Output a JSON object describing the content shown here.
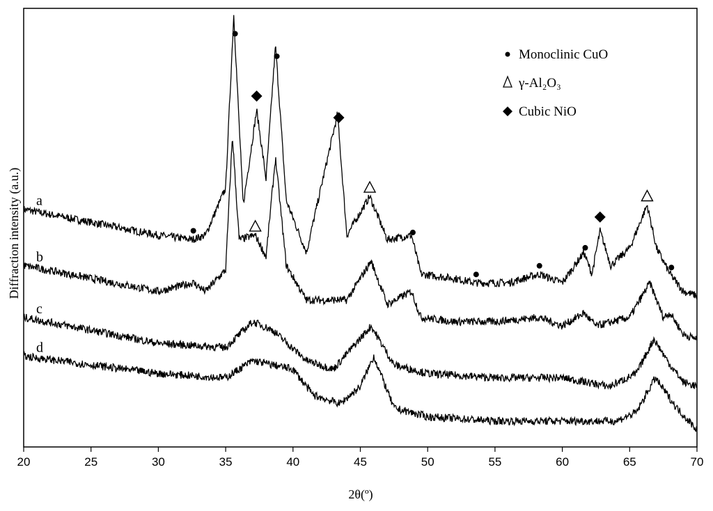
{
  "chart_data": {
    "type": "line",
    "xlabel": "2θ(º)",
    "ylabel": "Diffraction intensity (a.u.)",
    "xlim": [
      20,
      70
    ],
    "x_ticks": [
      "20",
      "25",
      "30",
      "35",
      "40",
      "45",
      "50",
      "55",
      "60",
      "65",
      "70"
    ],
    "y_ticks_shown": false,
    "grid": false,
    "legend_position": "top-right",
    "legend": [
      {
        "marker": "●",
        "label": "Monoclinic CuO"
      },
      {
        "marker": "Δ",
        "label": "γ-Al₂O₃"
      },
      {
        "marker": "◆",
        "label": "Cubic NiO"
      }
    ],
    "series": [
      {
        "name": "a",
        "x": [
          20,
          25,
          30,
          32.5,
          33.5,
          35.0,
          35.6,
          36.3,
          37.3,
          38.0,
          38.7,
          39.5,
          41.0,
          43.3,
          44.0,
          45.7,
          47.0,
          48.8,
          49.5,
          52.0,
          53.5,
          56.0,
          58.3,
          60.0,
          61.6,
          62.2,
          62.8,
          63.6,
          65.0,
          66.3,
          67.0,
          68.0,
          69.0,
          70
        ],
        "y": [
          0.55,
          0.52,
          0.49,
          0.48,
          0.49,
          0.6,
          1.0,
          0.56,
          0.78,
          0.62,
          0.93,
          0.57,
          0.45,
          0.77,
          0.49,
          0.58,
          0.48,
          0.49,
          0.4,
          0.39,
          0.38,
          0.38,
          0.4,
          0.38,
          0.45,
          0.4,
          0.5,
          0.42,
          0.46,
          0.56,
          0.46,
          0.4,
          0.36,
          0.35
        ]
      },
      {
        "name": "b",
        "x": [
          20,
          25,
          30,
          32.6,
          33.5,
          35.0,
          35.5,
          36.0,
          37.2,
          38.0,
          38.7,
          39.5,
          41.0,
          44.0,
          45.8,
          47.0,
          48.8,
          49.5,
          52.0,
          55.0,
          58.3,
          60.0,
          61.6,
          62.5,
          65.0,
          66.5,
          67.5,
          68.0,
          69.0,
          70
        ],
        "y": [
          0.42,
          0.39,
          0.36,
          0.38,
          0.36,
          0.41,
          0.72,
          0.48,
          0.49,
          0.44,
          0.67,
          0.42,
          0.34,
          0.34,
          0.43,
          0.33,
          0.36,
          0.3,
          0.29,
          0.29,
          0.3,
          0.28,
          0.31,
          0.28,
          0.3,
          0.38,
          0.3,
          0.31,
          0.26,
          0.25
        ]
      },
      {
        "name": "c",
        "x": [
          20,
          25,
          30,
          35,
          37.0,
          38.5,
          41.0,
          43.0,
          45.8,
          47.5,
          50,
          55,
          60,
          63.5,
          65.5,
          66.8,
          68.0,
          69.0,
          70
        ],
        "y": [
          0.3,
          0.27,
          0.24,
          0.23,
          0.29,
          0.27,
          0.2,
          0.18,
          0.28,
          0.19,
          0.17,
          0.16,
          0.16,
          0.14,
          0.17,
          0.25,
          0.19,
          0.15,
          0.14
        ]
      },
      {
        "name": "d",
        "x": [
          20,
          25,
          30,
          35,
          37.0,
          38.5,
          40.0,
          41.5,
          43.5,
          45.0,
          46.0,
          47.5,
          50,
          55,
          60,
          64.0,
          65.5,
          66.9,
          68.5,
          70
        ],
        "y": [
          0.21,
          0.19,
          0.17,
          0.16,
          0.2,
          0.19,
          0.18,
          0.12,
          0.1,
          0.14,
          0.21,
          0.09,
          0.07,
          0.06,
          0.06,
          0.06,
          0.08,
          0.16,
          0.09,
          0.04
        ]
      }
    ],
    "markers": [
      {
        "series": "a",
        "type": "circle",
        "x": [
          32.6,
          35.7,
          38.8,
          48.9,
          53.6,
          58.3,
          61.7,
          68.1
        ]
      },
      {
        "series": "a",
        "type": "diamond",
        "x": [
          37.3,
          43.4,
          62.8
        ]
      },
      {
        "series": "a",
        "type": "triangle",
        "x": [
          45.7,
          66.3
        ]
      },
      {
        "series": "b",
        "type": "triangle",
        "x": [
          37.2
        ]
      }
    ]
  }
}
